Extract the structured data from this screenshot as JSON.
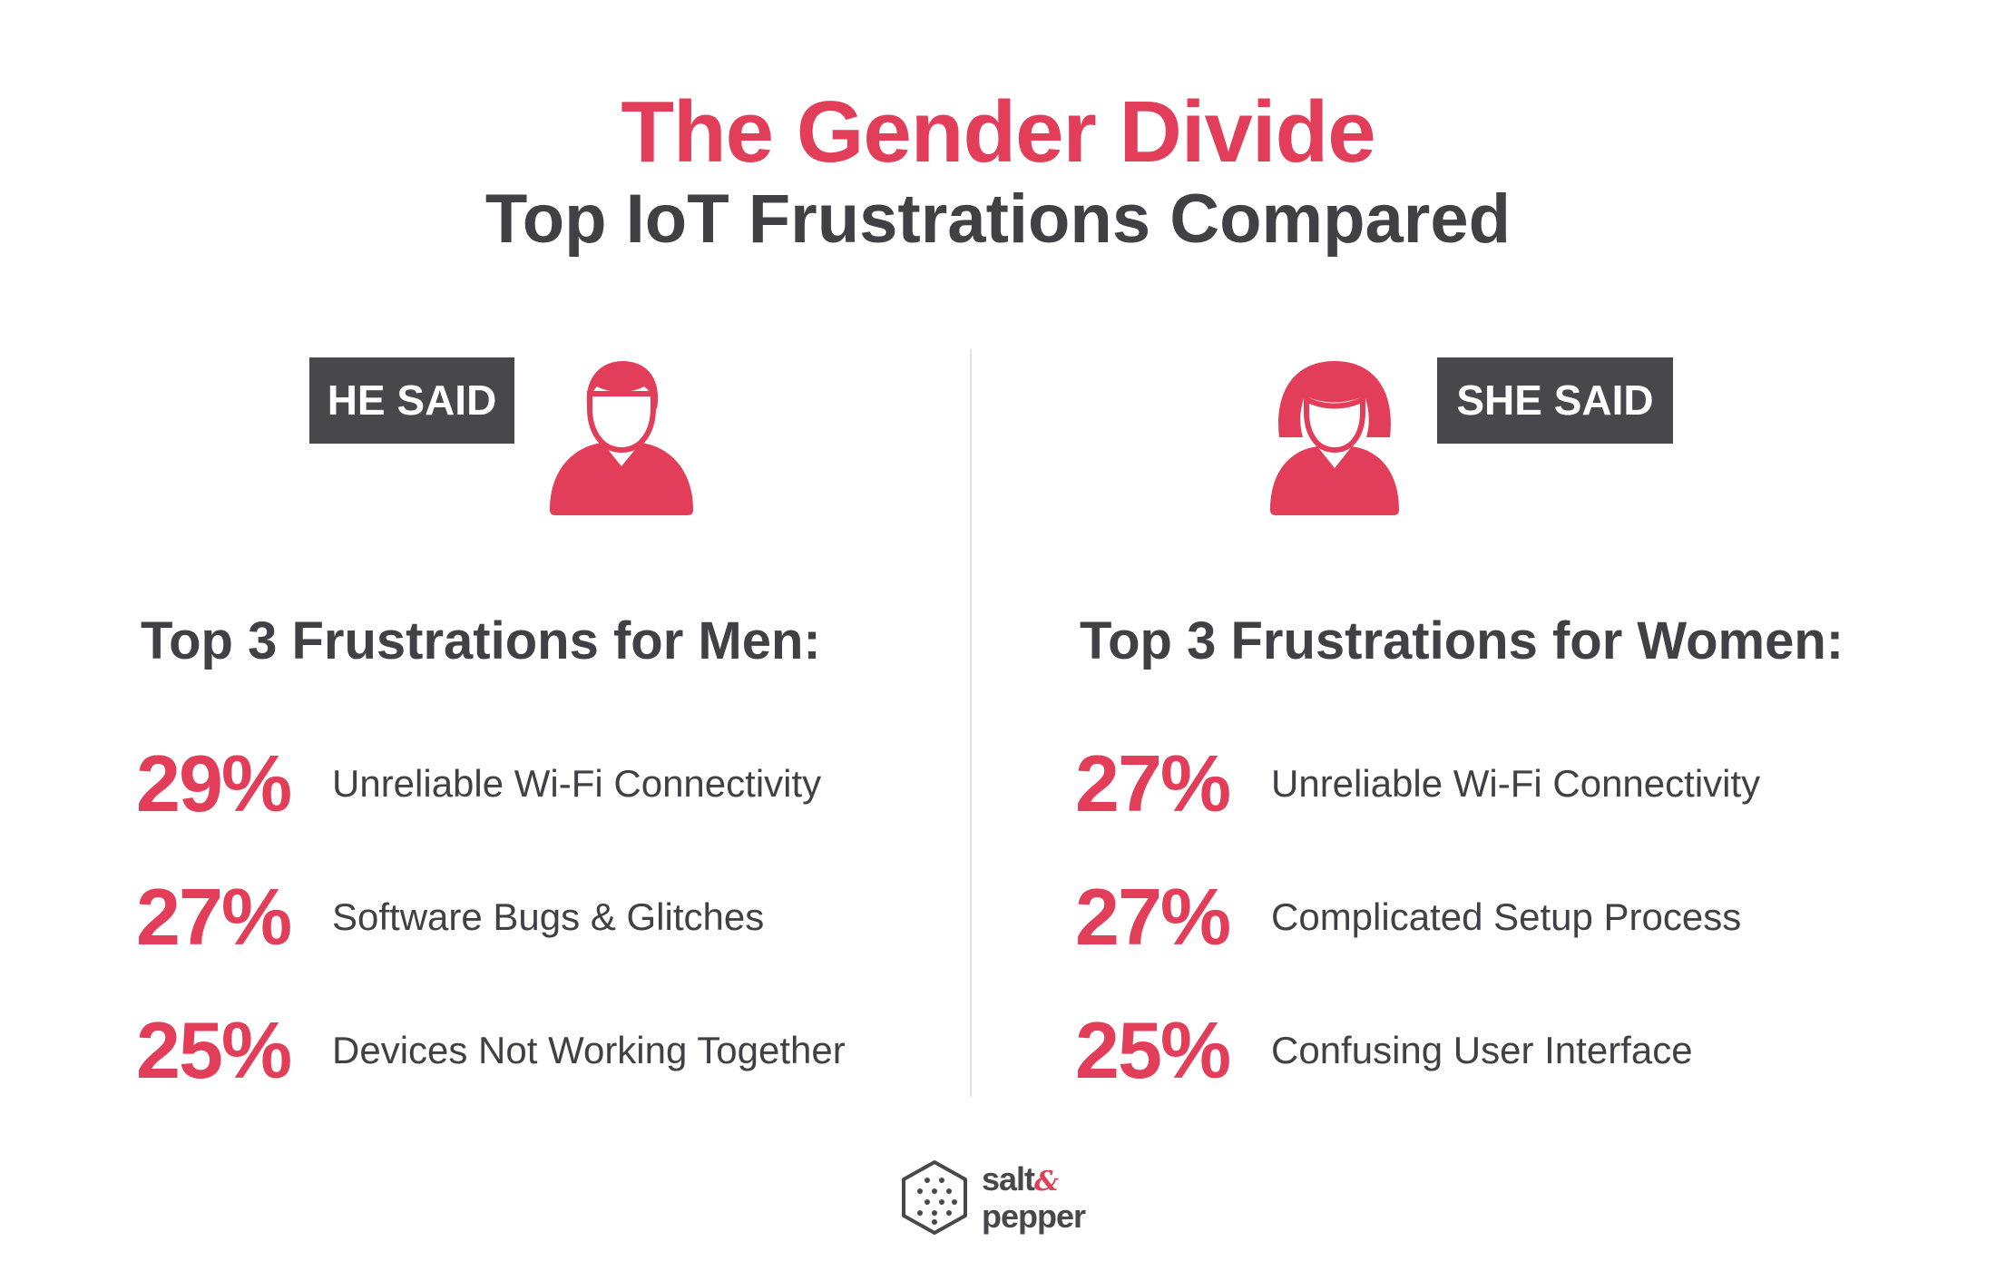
{
  "header": {
    "title": "The Gender Divide",
    "subtitle": "Top IoT Frustrations Compared"
  },
  "men": {
    "tag": "HE SAID",
    "icon": "male-user-icon",
    "heading": "Top 3 Frustrations for Men:",
    "items": [
      {
        "percent": "29%",
        "label": "Unreliable Wi-Fi Connectivity"
      },
      {
        "percent": "27%",
        "label": "Software Bugs & Glitches"
      },
      {
        "percent": "25%",
        "label": "Devices Not Working Together"
      }
    ]
  },
  "women": {
    "tag": "SHE SAID",
    "icon": "female-user-icon",
    "heading": "Top 3 Frustrations for Women:",
    "items": [
      {
        "percent": "27%",
        "label": "Unreliable Wi-Fi Connectivity"
      },
      {
        "percent": "27%",
        "label": "Complicated Setup Process"
      },
      {
        "percent": "25%",
        "label": "Confusing User Interface"
      }
    ]
  },
  "logo": {
    "line1": "salt",
    "amp": "&",
    "line2": "pepper",
    "icon": "hexagon-dots-logo-icon"
  },
  "colors": {
    "accent": "#e33e59",
    "text": "#414045",
    "tag_bg": "#48474c"
  }
}
